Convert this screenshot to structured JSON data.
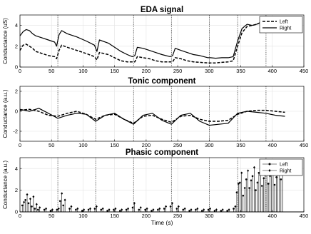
{
  "chart_data": [
    {
      "type": "line",
      "title": "EDA signal",
      "xlabel": "",
      "ylabel": "Conductance (uS)",
      "xlim": [
        0,
        450
      ],
      "ylim": [
        0,
        5
      ],
      "xticks": [
        0,
        50,
        100,
        150,
        200,
        250,
        300,
        350,
        400,
        450
      ],
      "yticks": [
        0,
        2,
        4
      ],
      "grid": true,
      "legend": {
        "placement": "top-right"
      },
      "markers": [
        60,
        120,
        180,
        240,
        300,
        345,
        390
      ],
      "series": [
        {
          "name": "Left",
          "style": "dashed",
          "x": [
            0,
            5,
            10,
            15,
            20,
            25,
            35,
            45,
            55,
            58,
            62,
            66,
            75,
            90,
            105,
            118,
            122,
            126,
            140,
            150,
            160,
            170,
            178,
            182,
            186,
            195,
            205,
            215,
            225,
            238,
            242,
            246,
            255,
            265,
            275,
            285,
            298,
            302,
            310,
            320,
            330,
            338,
            345,
            352,
            360,
            368,
            375,
            382,
            388
          ],
          "y": [
            1.6,
            2.1,
            2.2,
            2.0,
            1.8,
            1.5,
            1.3,
            1.1,
            1.0,
            0.8,
            1.6,
            2.1,
            1.9,
            1.6,
            1.3,
            1.0,
            0.7,
            1.4,
            1.2,
            0.9,
            0.6,
            0.5,
            0.5,
            0.5,
            1.0,
            0.9,
            0.8,
            0.6,
            0.5,
            0.5,
            0.5,
            0.9,
            0.8,
            0.6,
            0.5,
            0.45,
            0.4,
            0.4,
            0.4,
            0.45,
            0.5,
            0.6,
            2.0,
            3.3,
            3.9,
            4.0,
            4.1,
            4.3,
            4.4
          ]
        },
        {
          "name": "Right",
          "style": "solid",
          "x": [
            0,
            5,
            10,
            15,
            20,
            25,
            35,
            45,
            55,
            58,
            62,
            66,
            75,
            90,
            105,
            118,
            122,
            126,
            140,
            150,
            160,
            170,
            178,
            182,
            186,
            195,
            205,
            215,
            225,
            238,
            242,
            246,
            255,
            265,
            275,
            285,
            298,
            302,
            310,
            320,
            330,
            338,
            345,
            352,
            360,
            368,
            375,
            382,
            388
          ],
          "y": [
            3.0,
            3.4,
            3.6,
            3.5,
            3.2,
            3.0,
            2.8,
            2.6,
            2.4,
            2.0,
            3.1,
            3.5,
            3.2,
            2.9,
            2.5,
            2.1,
            1.5,
            2.6,
            2.3,
            1.9,
            1.5,
            1.2,
            1.0,
            1.1,
            1.9,
            1.8,
            1.6,
            1.4,
            1.2,
            1.0,
            1.1,
            1.8,
            1.6,
            1.4,
            1.2,
            1.1,
            0.9,
            0.9,
            0.85,
            0.9,
            0.9,
            1.0,
            2.5,
            3.7,
            4.1,
            4.0,
            4.1,
            4.3,
            4.4
          ]
        }
      ]
    },
    {
      "type": "line",
      "title": "Tonic component",
      "xlabel": "",
      "ylabel": "Conductance (a.u.)",
      "xlim": [
        0,
        450
      ],
      "ylim": [
        -3,
        2.5
      ],
      "xticks": [
        0,
        50,
        100,
        150,
        200,
        250,
        300,
        350,
        400,
        450
      ],
      "yticks": [
        -2,
        0,
        2
      ],
      "grid": true,
      "markers": [
        60,
        120,
        180,
        240,
        300,
        345,
        390
      ],
      "series": [
        {
          "name": "Left",
          "style": "dashed",
          "x": [
            0,
            15,
            30,
            45,
            60,
            75,
            90,
            105,
            120,
            135,
            150,
            165,
            180,
            195,
            210,
            225,
            240,
            255,
            270,
            285,
            300,
            315,
            330,
            345,
            360,
            375,
            390,
            405,
            420
          ],
          "y": [
            0.1,
            0.2,
            0.0,
            -0.4,
            -0.5,
            -0.2,
            0.0,
            -0.3,
            -0.8,
            -0.4,
            -0.3,
            -0.8,
            -1.2,
            -0.5,
            -0.4,
            -0.8,
            -1.1,
            -0.5,
            -0.4,
            -0.8,
            -1.0,
            -1.0,
            -0.9,
            -0.3,
            0.0,
            0.1,
            0.1,
            0.0,
            -0.1
          ]
        },
        {
          "name": "Right",
          "style": "solid",
          "x": [
            0,
            15,
            30,
            45,
            60,
            75,
            90,
            105,
            120,
            135,
            150,
            165,
            180,
            195,
            210,
            225,
            240,
            255,
            270,
            285,
            300,
            315,
            330,
            345,
            360,
            375,
            390,
            405,
            420
          ],
          "y": [
            0.2,
            0.0,
            0.3,
            -0.2,
            -0.7,
            -0.4,
            -0.2,
            -0.3,
            -1.0,
            -0.4,
            -0.2,
            -0.8,
            -1.3,
            -0.4,
            -0.2,
            -0.9,
            -1.3,
            -0.4,
            -0.2,
            -1.0,
            -1.4,
            -1.3,
            -1.2,
            -0.2,
            0.0,
            -0.1,
            -0.2,
            -0.4,
            -0.5
          ]
        }
      ]
    },
    {
      "type": "line",
      "title": "Phasic component",
      "xlabel": "Time (s)",
      "ylabel": "Conductance (a.u.)",
      "xlim": [
        0,
        450
      ],
      "ylim": [
        0,
        5
      ],
      "xticks": [
        0,
        50,
        100,
        150,
        200,
        250,
        300,
        350,
        400,
        450
      ],
      "yticks": [
        0,
        2,
        4
      ],
      "grid": true,
      "legend": {
        "placement": "top-right"
      },
      "markers": [
        60,
        120,
        180,
        240,
        300,
        345,
        390
      ],
      "series": [
        {
          "name": "Left",
          "marker": "circle",
          "x": [
            5,
            10,
            15,
            20,
            25,
            30,
            40,
            50,
            60,
            65,
            70,
            80,
            90,
            100,
            110,
            120,
            130,
            140,
            150,
            160,
            170,
            180,
            190,
            200,
            210,
            220,
            230,
            240,
            250,
            260,
            270,
            280,
            290,
            300,
            310,
            320,
            330,
            340,
            345,
            350,
            355,
            360,
            365,
            370,
            375,
            380,
            385,
            390,
            395,
            400,
            405,
            410,
            415
          ],
          "y": [
            0.6,
            1.1,
            0.8,
            0.5,
            0.3,
            0.2,
            0.2,
            0.1,
            0.2,
            1.0,
            0.6,
            0.3,
            0.2,
            0.1,
            0.2,
            0.3,
            0.2,
            0.1,
            0.2,
            0.1,
            0.2,
            0.4,
            0.2,
            0.2,
            0.1,
            0.2,
            0.3,
            0.5,
            0.3,
            0.2,
            0.1,
            0.2,
            0.1,
            0.2,
            0.1,
            0.1,
            0.1,
            0.3,
            1.8,
            2.7,
            1.5,
            3.0,
            2.2,
            3.3,
            2.0,
            3.6,
            2.4,
            3.4,
            2.6,
            3.8,
            2.5,
            3.7,
            3.0
          ]
        },
        {
          "name": "Right",
          "marker": "diamond",
          "x": [
            5,
            10,
            15,
            20,
            25,
            30,
            40,
            50,
            60,
            65,
            70,
            80,
            90,
            100,
            110,
            120,
            130,
            140,
            150,
            160,
            170,
            180,
            190,
            200,
            210,
            220,
            230,
            240,
            250,
            260,
            270,
            280,
            290,
            300,
            310,
            320,
            330,
            340,
            345,
            350,
            355,
            360,
            365,
            370,
            375,
            380,
            385,
            390,
            395,
            400,
            405,
            410,
            415
          ],
          "y": [
            0.9,
            1.6,
            1.2,
            1.4,
            0.7,
            0.4,
            0.3,
            0.2,
            0.3,
            1.7,
            1.1,
            0.5,
            0.3,
            0.2,
            0.3,
            0.5,
            0.3,
            0.2,
            0.3,
            0.2,
            0.3,
            0.8,
            0.4,
            0.3,
            0.2,
            0.3,
            0.5,
            0.8,
            0.5,
            0.3,
            0.2,
            0.3,
            0.2,
            0.3,
            0.2,
            0.2,
            0.2,
            0.5,
            2.6,
            3.6,
            2.2,
            3.8,
            2.9,
            4.1,
            2.7,
            4.3,
            3.1,
            4.0,
            3.3,
            4.4,
            3.2,
            4.2,
            4.6
          ]
        }
      ]
    }
  ]
}
